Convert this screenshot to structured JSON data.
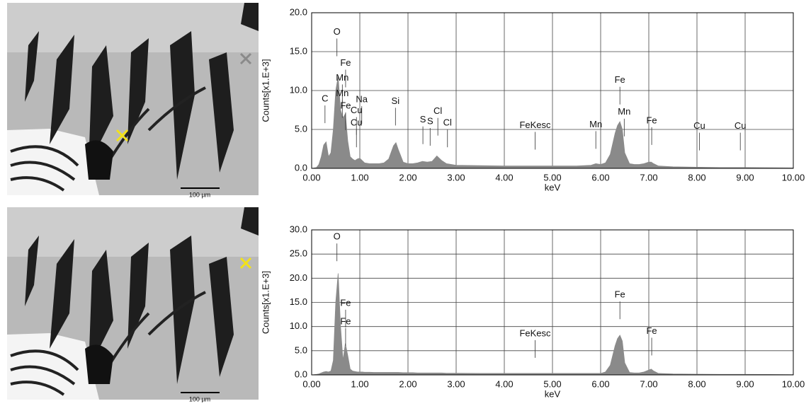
{
  "images": [
    {
      "scale_label": "100 µm"
    },
    {
      "scale_label": "100 µm"
    }
  ],
  "chart_data": [
    {
      "type": "area",
      "ylabel": "Counts[x1.E+3]",
      "xlabel": "keV",
      "xlim": [
        0,
        10
      ],
      "ylim": [
        0,
        20
      ],
      "xticks": [
        {
          "value": 0,
          "label": "0.00"
        },
        {
          "value": 1,
          "label": "1.00"
        },
        {
          "value": 2,
          "label": "2.00"
        },
        {
          "value": 3,
          "label": "3.00"
        },
        {
          "value": 4,
          "label": "4.00"
        },
        {
          "value": 5,
          "label": "5.00"
        },
        {
          "value": 6,
          "label": "6.00"
        },
        {
          "value": 7,
          "label": "7.00"
        },
        {
          "value": 8,
          "label": "8.00"
        },
        {
          "value": 9,
          "label": "9.00"
        },
        {
          "value": 10,
          "label": "10.00"
        }
      ],
      "yticks": [
        {
          "value": 0,
          "label": "0.0"
        },
        {
          "value": 5,
          "label": "5.0"
        },
        {
          "value": 10,
          "label": "10.0"
        },
        {
          "value": 15,
          "label": "15.0"
        },
        {
          "value": 20,
          "label": "20.0"
        }
      ],
      "grid": true,
      "x": [
        0,
        0.1,
        0.15,
        0.2,
        0.25,
        0.3,
        0.35,
        0.4,
        0.45,
        0.5,
        0.55,
        0.6,
        0.65,
        0.7,
        0.75,
        0.8,
        0.85,
        0.9,
        0.95,
        1.0,
        1.05,
        1.1,
        1.2,
        1.3,
        1.4,
        1.5,
        1.6,
        1.7,
        1.75,
        1.8,
        1.9,
        2.0,
        2.1,
        2.2,
        2.3,
        2.4,
        2.5,
        2.6,
        2.7,
        2.8,
        2.9,
        3.0,
        3.5,
        4.0,
        4.5,
        5.0,
        5.5,
        5.8,
        5.9,
        6.0,
        6.1,
        6.2,
        6.3,
        6.35,
        6.4,
        6.45,
        6.5,
        6.6,
        6.7,
        6.8,
        6.9,
        7.0,
        7.05,
        7.1,
        7.2,
        7.5,
        8.0,
        8.5,
        9.0,
        9.5,
        10.0
      ],
      "series": [
        {
          "color": "#8a8a8a",
          "values": [
            0,
            0.1,
            0.5,
            1.5,
            3.0,
            3.4,
            1.5,
            2.0,
            5.0,
            10.0,
            11.8,
            7.5,
            6.5,
            7.0,
            3.5,
            1.5,
            1.2,
            1.0,
            1.2,
            1.3,
            1.0,
            0.7,
            0.6,
            0.6,
            0.6,
            0.7,
            1.2,
            2.9,
            3.3,
            2.4,
            0.8,
            0.6,
            0.6,
            0.7,
            0.9,
            0.8,
            0.9,
            1.6,
            1.0,
            0.6,
            0.5,
            0.4,
            0.35,
            0.3,
            0.3,
            0.3,
            0.3,
            0.4,
            0.6,
            0.5,
            0.7,
            1.8,
            4.5,
            5.5,
            6.0,
            5.0,
            2.0,
            0.6,
            0.5,
            0.5,
            0.6,
            0.8,
            0.8,
            0.6,
            0.3,
            0.2,
            0.15,
            0.1,
            0.1,
            0.08,
            0.05
          ]
        }
      ],
      "annotations": [
        {
          "text": "C",
          "x": 0.277,
          "y": 8.9
        },
        {
          "text": "O",
          "x": 0.525,
          "y": 17.5
        },
        {
          "text": "Fe",
          "x": 0.705,
          "y": 13.5
        },
        {
          "text": "Mn",
          "x": 0.637,
          "y": 11.6
        },
        {
          "text": "Mn",
          "x": 0.637,
          "y": 9.6
        },
        {
          "text": "Fe",
          "x": 0.705,
          "y": 8.0
        },
        {
          "text": "Cu",
          "x": 0.93,
          "y": 7.4
        },
        {
          "text": "Na",
          "x": 1.04,
          "y": 8.8
        },
        {
          "text": "Cu",
          "x": 0.93,
          "y": 5.8
        },
        {
          "text": "Si",
          "x": 1.74,
          "y": 8.6
        },
        {
          "text": "S",
          "x": 2.31,
          "y": 6.2
        },
        {
          "text": "S",
          "x": 2.46,
          "y": 6.0
        },
        {
          "text": "Cl",
          "x": 2.62,
          "y": 7.3
        },
        {
          "text": "Cl",
          "x": 2.82,
          "y": 5.8
        },
        {
          "text": "FeKesc",
          "x": 4.64,
          "y": 5.5
        },
        {
          "text": "Mn",
          "x": 5.9,
          "y": 5.6
        },
        {
          "text": "Fe",
          "x": 6.4,
          "y": 11.3
        },
        {
          "text": "Mn",
          "x": 6.49,
          "y": 7.2
        },
        {
          "text": "Fe",
          "x": 7.06,
          "y": 6.1
        },
        {
          "text": "Cu",
          "x": 8.05,
          "y": 5.4
        },
        {
          "text": "Cu",
          "x": 8.9,
          "y": 5.4
        }
      ]
    },
    {
      "type": "area",
      "ylabel": "Counts[x1.E+3]",
      "xlabel": "keV",
      "xlim": [
        0,
        10
      ],
      "ylim": [
        0,
        30
      ],
      "xticks": [
        {
          "value": 0,
          "label": "0.00"
        },
        {
          "value": 1,
          "label": "1.00"
        },
        {
          "value": 2,
          "label": "2.00"
        },
        {
          "value": 3,
          "label": "3.00"
        },
        {
          "value": 4,
          "label": "4.00"
        },
        {
          "value": 5,
          "label": "5.00"
        },
        {
          "value": 6,
          "label": "6.00"
        },
        {
          "value": 7,
          "label": "7.00"
        },
        {
          "value": 8,
          "label": "8.00"
        },
        {
          "value": 9,
          "label": "9.00"
        },
        {
          "value": 10,
          "label": "10.00"
        }
      ],
      "yticks": [
        {
          "value": 0,
          "label": "0.0"
        },
        {
          "value": 5,
          "label": "5.0"
        },
        {
          "value": 10,
          "label": "10.0"
        },
        {
          "value": 15,
          "label": "15.0"
        },
        {
          "value": 20,
          "label": "20.0"
        },
        {
          "value": 25,
          "label": "25.0"
        },
        {
          "value": 30,
          "label": "30.0"
        }
      ],
      "grid": true,
      "x": [
        0,
        0.1,
        0.15,
        0.2,
        0.25,
        0.3,
        0.35,
        0.4,
        0.45,
        0.5,
        0.55,
        0.6,
        0.65,
        0.7,
        0.75,
        0.8,
        0.85,
        0.9,
        0.95,
        1.0,
        1.05,
        1.1,
        1.2,
        1.3,
        1.4,
        1.5,
        1.6,
        1.7,
        1.75,
        1.8,
        1.9,
        2.0,
        2.1,
        2.2,
        2.3,
        2.4,
        2.5,
        2.6,
        2.7,
        2.8,
        2.9,
        3.0,
        3.5,
        4.0,
        4.5,
        5.0,
        5.5,
        5.8,
        5.9,
        6.0,
        6.1,
        6.2,
        6.3,
        6.35,
        6.4,
        6.45,
        6.5,
        6.6,
        6.7,
        6.8,
        6.9,
        7.0,
        7.05,
        7.1,
        7.2,
        7.5,
        8.0,
        8.5,
        9.0,
        9.5,
        10.0
      ],
      "series": [
        {
          "color": "#8a8a8a",
          "values": [
            0,
            0.1,
            0.2,
            0.4,
            0.6,
            0.7,
            0.6,
            0.8,
            3,
            15,
            21,
            10,
            3,
            6.5,
            4,
            1.2,
            0.8,
            0.7,
            0.6,
            0.6,
            0.6,
            0.55,
            0.55,
            0.5,
            0.5,
            0.5,
            0.5,
            0.5,
            0.5,
            0.5,
            0.45,
            0.45,
            0.45,
            0.4,
            0.4,
            0.4,
            0.4,
            0.4,
            0.4,
            0.35,
            0.35,
            0.35,
            0.3,
            0.3,
            0.3,
            0.3,
            0.3,
            0.3,
            0.3,
            0.3,
            0.6,
            2,
            6,
            7.5,
            8.2,
            7,
            2.5,
            0.5,
            0.4,
            0.4,
            0.6,
            1.0,
            1.2,
            0.8,
            0.3,
            0.2,
            0.15,
            0.1,
            0.1,
            0.08,
            0.05
          ]
        }
      ],
      "annotations": [
        {
          "text": "O",
          "x": 0.525,
          "y": 28.5
        },
        {
          "text": "Fe",
          "x": 0.705,
          "y": 14.8
        },
        {
          "text": "Fe",
          "x": 0.705,
          "y": 11.0
        },
        {
          "text": "FeKesc",
          "x": 4.64,
          "y": 8.5
        },
        {
          "text": "Fe",
          "x": 6.4,
          "y": 16.5
        },
        {
          "text": "Fe",
          "x": 7.06,
          "y": 9.0
        }
      ]
    }
  ]
}
